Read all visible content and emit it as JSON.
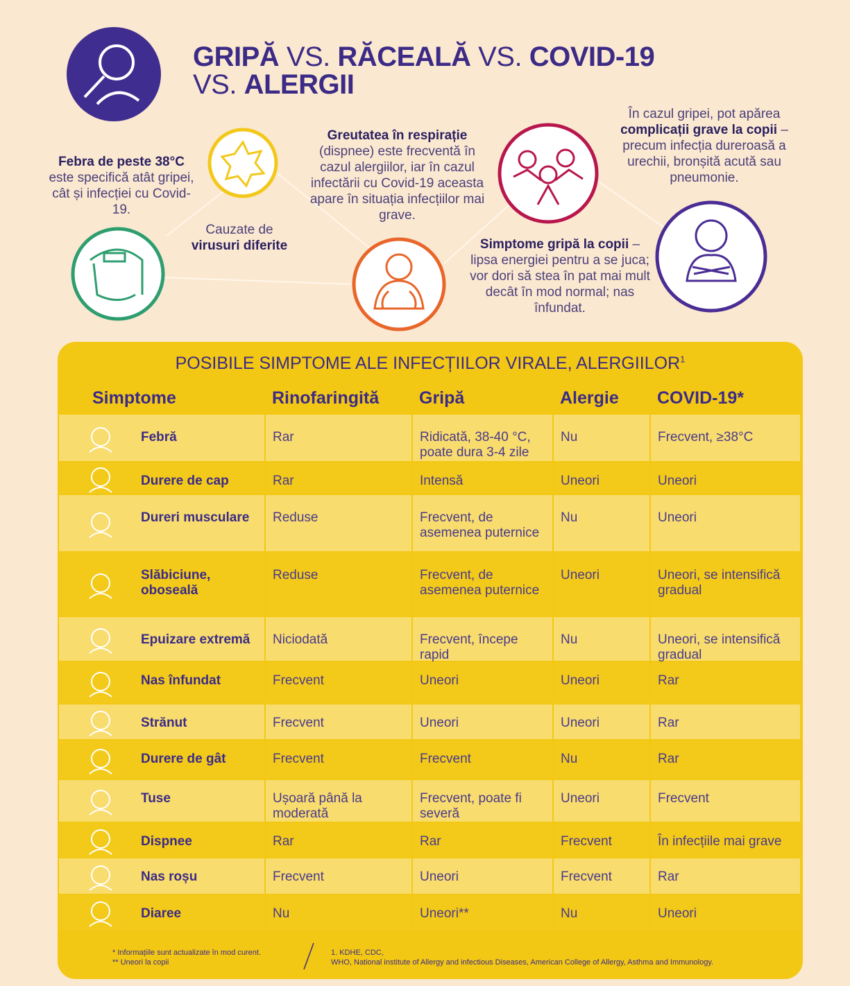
{
  "title": [
    "GRIPĂ",
    "VS.",
    "RĂCEALĂ",
    "VS.",
    "COVID-19",
    "VS.",
    "ALERGII"
  ],
  "callouts": [
    {
      "bold": "Febra de peste 38°C",
      "text": "este specifică atât gripei, cât și infecției cu Covid-19."
    },
    {
      "text": "Cauzate de",
      "bold": "virusuri diferite"
    },
    {
      "bold": "Greutatea în respirație",
      "text": "(dispnee) este frecventă în cazul alergiilor, iar în cazul infectării cu Covid-19 aceasta apare în situația infecțiilor mai grave."
    },
    {
      "text": "În cazul gripei, pot apărea",
      "bold": "complicații grave la copii",
      "after": "– precum infecția dureroasă a urechii, bronșită acută sau pneumonie."
    },
    {
      "bold": "Simptome gripă la copii",
      "text": "– lipsa energiei pentru a se juca; vor dori să stea în pat mai mult decât în mod normal; nas înfundat."
    }
  ],
  "table": {
    "title": "POSIBILE SIMPTOME ALE INFECȚIILOR VIRALE, ALERGIILOR",
    "title_sup": "1",
    "headers": [
      "Simptome",
      "Rinofaringită",
      "Gripă",
      "Alergie",
      "COVID-19*"
    ],
    "rows": [
      [
        "Febră",
        "Rar",
        "Ridicată, 38-40 °C, poate dura 3-4 zile",
        "Nu",
        "Frecvent, ≥38°C"
      ],
      [
        "Durere de cap",
        "Rar",
        "Intensă",
        "Uneori",
        "Uneori"
      ],
      [
        "Dureri musculare",
        "Reduse",
        "Frecvent, de asemenea puternice",
        "Nu",
        "Uneori"
      ],
      [
        "Slăbiciune, oboseală",
        "Reduse",
        "Frecvent, de asemenea puternice",
        "Uneori",
        "Uneori, se intensifică gradual"
      ],
      [
        "Epuizare extremă",
        "Niciodată",
        "Frecvent, începe rapid",
        "Nu",
        "Uneori, se intensifică gradual"
      ],
      [
        "Nas înfundat",
        "Frecvent",
        "Uneori",
        "Uneori",
        "Rar"
      ],
      [
        "Strănut",
        "Frecvent",
        "Uneori",
        "Uneori",
        "Rar"
      ],
      [
        "Durere de gât",
        "Frecvent",
        "Frecvent",
        "Nu",
        "Rar"
      ],
      [
        "Tuse",
        "Ușoară până la moderată",
        "Frecvent, poate fi severă",
        "Uneori",
        "Frecvent"
      ],
      [
        "Dispnee",
        "Rar",
        "Rar",
        "Frecvent",
        "În infecțiile mai grave"
      ],
      [
        "Nas roșu",
        "Frecvent",
        "Uneori",
        "Frecvent",
        "Rar"
      ],
      [
        "Diaree",
        "Nu",
        "Uneori**",
        "Nu",
        "Uneori"
      ]
    ]
  },
  "footnotes": [
    "* Informațiile sunt actualizate în mod curent.",
    "** Uneori la copii"
  ],
  "sources": [
    "1. KDHE, CDC,",
    "WHO, National institute of Allergy and infectious Diseases, American College of Allergy, Asthma and Immunology."
  ]
}
